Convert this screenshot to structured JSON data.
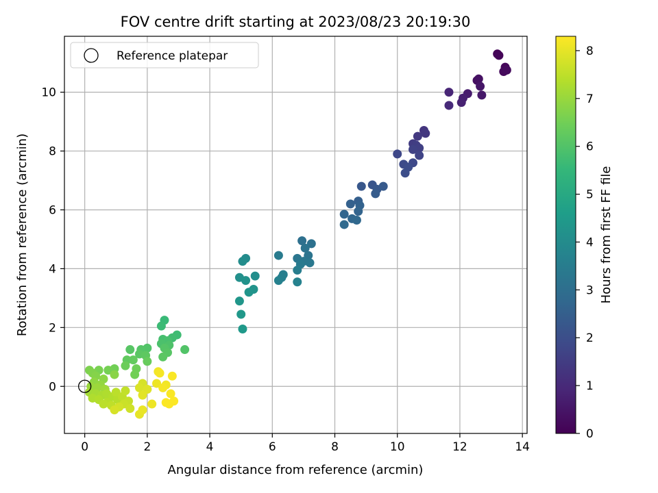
{
  "chart_data": {
    "type": "scatter",
    "title": "FOV centre drift starting at 2023/08/23 20:19:30",
    "xlabel": "Angular distance from reference (arcmin)",
    "ylabel": "Rotation from reference (arcmin)",
    "xlim": [
      -0.65,
      14.15
    ],
    "ylim": [
      -1.6,
      11.9
    ],
    "x_ticks": [
      0,
      2,
      4,
      6,
      8,
      10,
      12,
      14
    ],
    "y_ticks": [
      0,
      2,
      4,
      6,
      8,
      10
    ],
    "grid": true,
    "legend": {
      "placement": "top-left",
      "entries": [
        "Reference platepar"
      ]
    },
    "reference_point": {
      "x": 0,
      "y": 0
    },
    "colorbar": {
      "label": "Hours from first FF file",
      "range": [
        0,
        8.3
      ],
      "ticks": [
        0,
        1,
        2,
        3,
        4,
        5,
        6,
        7,
        8
      ],
      "colormap": "viridis",
      "colors": [
        "#440154",
        "#482777",
        "#3e4989",
        "#31688e",
        "#26828e",
        "#1f9e89",
        "#35b779",
        "#6ece58",
        "#b5de2b",
        "#fde725"
      ]
    },
    "points": [
      {
        "x": 13.2,
        "y": 11.3,
        "h": 0.05
      },
      {
        "x": 13.25,
        "y": 11.25,
        "h": 0.1
      },
      {
        "x": 13.45,
        "y": 10.85,
        "h": 0.15
      },
      {
        "x": 13.4,
        "y": 10.7,
        "h": 0.2
      },
      {
        "x": 13.5,
        "y": 10.75,
        "h": 0.25
      },
      {
        "x": 12.55,
        "y": 10.4,
        "h": 0.35
      },
      {
        "x": 12.6,
        "y": 10.45,
        "h": 0.4
      },
      {
        "x": 12.65,
        "y": 10.2,
        "h": 0.5
      },
      {
        "x": 12.7,
        "y": 9.9,
        "h": 0.55
      },
      {
        "x": 12.25,
        "y": 9.95,
        "h": 0.65
      },
      {
        "x": 12.1,
        "y": 9.8,
        "h": 0.75
      },
      {
        "x": 12.05,
        "y": 9.65,
        "h": 0.8
      },
      {
        "x": 11.65,
        "y": 10.0,
        "h": 0.9
      },
      {
        "x": 11.65,
        "y": 9.55,
        "h": 1.0
      },
      {
        "x": 10.85,
        "y": 8.7,
        "h": 1.3
      },
      {
        "x": 10.9,
        "y": 8.6,
        "h": 1.35
      },
      {
        "x": 10.65,
        "y": 8.5,
        "h": 1.4
      },
      {
        "x": 10.5,
        "y": 8.25,
        "h": 1.5
      },
      {
        "x": 10.6,
        "y": 8.2,
        "h": 1.55
      },
      {
        "x": 10.7,
        "y": 8.1,
        "h": 1.6
      },
      {
        "x": 10.5,
        "y": 8.05,
        "h": 1.65
      },
      {
        "x": 10.7,
        "y": 7.85,
        "h": 1.7
      },
      {
        "x": 10.0,
        "y": 7.9,
        "h": 1.8
      },
      {
        "x": 10.5,
        "y": 7.6,
        "h": 1.85
      },
      {
        "x": 10.2,
        "y": 7.55,
        "h": 1.9
      },
      {
        "x": 10.35,
        "y": 7.45,
        "h": 1.95
      },
      {
        "x": 10.25,
        "y": 7.25,
        "h": 2.0
      },
      {
        "x": 9.2,
        "y": 6.85,
        "h": 2.2
      },
      {
        "x": 8.85,
        "y": 6.8,
        "h": 2.25
      },
      {
        "x": 9.35,
        "y": 6.7,
        "h": 2.3
      },
      {
        "x": 9.55,
        "y": 6.8,
        "h": 2.35
      },
      {
        "x": 9.3,
        "y": 6.55,
        "h": 2.4
      },
      {
        "x": 8.75,
        "y": 6.3,
        "h": 2.5
      },
      {
        "x": 8.5,
        "y": 6.2,
        "h": 2.55
      },
      {
        "x": 8.8,
        "y": 6.15,
        "h": 2.6
      },
      {
        "x": 8.75,
        "y": 5.95,
        "h": 2.65
      },
      {
        "x": 8.3,
        "y": 5.85,
        "h": 2.7
      },
      {
        "x": 8.55,
        "y": 5.7,
        "h": 2.75
      },
      {
        "x": 8.7,
        "y": 5.65,
        "h": 2.8
      },
      {
        "x": 8.3,
        "y": 5.5,
        "h": 2.85
      },
      {
        "x": 6.95,
        "y": 4.95,
        "h": 3.05
      },
      {
        "x": 7.25,
        "y": 4.85,
        "h": 3.1
      },
      {
        "x": 7.05,
        "y": 4.7,
        "h": 3.15
      },
      {
        "x": 7.15,
        "y": 4.45,
        "h": 3.2
      },
      {
        "x": 6.8,
        "y": 4.35,
        "h": 3.25
      },
      {
        "x": 7.0,
        "y": 4.25,
        "h": 3.3
      },
      {
        "x": 7.2,
        "y": 4.2,
        "h": 3.35
      },
      {
        "x": 6.9,
        "y": 4.15,
        "h": 3.4
      },
      {
        "x": 6.2,
        "y": 4.45,
        "h": 3.45
      },
      {
        "x": 6.8,
        "y": 3.95,
        "h": 3.5
      },
      {
        "x": 6.35,
        "y": 3.8,
        "h": 3.55
      },
      {
        "x": 6.3,
        "y": 3.7,
        "h": 3.6
      },
      {
        "x": 6.2,
        "y": 3.6,
        "h": 3.65
      },
      {
        "x": 6.8,
        "y": 3.55,
        "h": 3.7
      },
      {
        "x": 5.15,
        "y": 4.35,
        "h": 4.0
      },
      {
        "x": 5.05,
        "y": 4.25,
        "h": 4.05
      },
      {
        "x": 5.45,
        "y": 3.75,
        "h": 4.1
      },
      {
        "x": 4.95,
        "y": 3.7,
        "h": 4.15
      },
      {
        "x": 5.15,
        "y": 3.6,
        "h": 4.2
      },
      {
        "x": 5.4,
        "y": 3.3,
        "h": 4.25
      },
      {
        "x": 5.25,
        "y": 3.2,
        "h": 4.3
      },
      {
        "x": 4.95,
        "y": 2.9,
        "h": 4.35
      },
      {
        "x": 5.0,
        "y": 2.45,
        "h": 4.4
      },
      {
        "x": 5.05,
        "y": 1.95,
        "h": 4.45
      },
      {
        "x": 2.55,
        "y": 2.25,
        "h": 5.6
      },
      {
        "x": 2.45,
        "y": 2.05,
        "h": 5.65
      },
      {
        "x": 2.95,
        "y": 1.75,
        "h": 5.7
      },
      {
        "x": 2.8,
        "y": 1.65,
        "h": 5.75
      },
      {
        "x": 2.5,
        "y": 1.6,
        "h": 5.8
      },
      {
        "x": 2.65,
        "y": 1.55,
        "h": 5.85
      },
      {
        "x": 2.45,
        "y": 1.45,
        "h": 5.9
      },
      {
        "x": 2.7,
        "y": 1.4,
        "h": 5.95
      },
      {
        "x": 3.2,
        "y": 1.25,
        "h": 6.0
      },
      {
        "x": 2.55,
        "y": 1.3,
        "h": 6.05
      },
      {
        "x": 2.65,
        "y": 1.15,
        "h": 6.1
      },
      {
        "x": 2.5,
        "y": 1.0,
        "h": 6.15
      },
      {
        "x": 2.0,
        "y": 1.3,
        "h": 6.0
      },
      {
        "x": 1.8,
        "y": 1.25,
        "h": 6.05
      },
      {
        "x": 1.45,
        "y": 1.25,
        "h": 6.1
      },
      {
        "x": 1.75,
        "y": 1.1,
        "h": 6.15
      },
      {
        "x": 1.95,
        "y": 1.05,
        "h": 6.2
      },
      {
        "x": 1.35,
        "y": 0.9,
        "h": 6.25
      },
      {
        "x": 1.55,
        "y": 0.9,
        "h": 6.3
      },
      {
        "x": 2.0,
        "y": 0.85,
        "h": 6.35
      },
      {
        "x": 1.3,
        "y": 0.7,
        "h": 6.4
      },
      {
        "x": 1.65,
        "y": 0.6,
        "h": 6.45
      },
      {
        "x": 1.6,
        "y": 0.4,
        "h": 6.5
      },
      {
        "x": 0.95,
        "y": 0.6,
        "h": 6.5
      },
      {
        "x": 0.75,
        "y": 0.55,
        "h": 6.55
      },
      {
        "x": 0.45,
        "y": 0.55,
        "h": 6.6
      },
      {
        "x": 0.15,
        "y": 0.55,
        "h": 6.65
      },
      {
        "x": 0.25,
        "y": 0.45,
        "h": 6.7
      },
      {
        "x": 0.35,
        "y": 0.35,
        "h": 6.75
      },
      {
        "x": 0.95,
        "y": 0.4,
        "h": 6.8
      },
      {
        "x": 0.6,
        "y": 0.25,
        "h": 6.85
      },
      {
        "x": 0.3,
        "y": 0.15,
        "h": 6.9
      },
      {
        "x": 0.5,
        "y": 0.05,
        "h": 6.95
      },
      {
        "x": 0.2,
        "y": 0.0,
        "h": 7.0
      },
      {
        "x": 0.4,
        "y": -0.05,
        "h": 7.05
      },
      {
        "x": 0.65,
        "y": -0.1,
        "h": 7.1
      },
      {
        "x": 0.15,
        "y": -0.2,
        "h": 7.15
      },
      {
        "x": 0.35,
        "y": -0.25,
        "h": 7.2
      },
      {
        "x": 0.55,
        "y": -0.3,
        "h": 7.25
      },
      {
        "x": 0.25,
        "y": -0.4,
        "h": 7.3
      },
      {
        "x": 0.45,
        "y": -0.45,
        "h": 7.35
      },
      {
        "x": 0.75,
        "y": -0.5,
        "h": 7.4
      },
      {
        "x": 0.6,
        "y": -0.6,
        "h": 7.45
      },
      {
        "x": 0.85,
        "y": -0.65,
        "h": 7.5
      },
      {
        "x": 0.7,
        "y": -0.25,
        "h": 7.3
      },
      {
        "x": 0.9,
        "y": -0.35,
        "h": 7.35
      },
      {
        "x": 1.05,
        "y": -0.45,
        "h": 7.4
      },
      {
        "x": 1.0,
        "y": -0.2,
        "h": 7.45
      },
      {
        "x": 1.2,
        "y": -0.35,
        "h": 7.5
      },
      {
        "x": 1.3,
        "y": -0.15,
        "h": 7.55
      },
      {
        "x": 1.4,
        "y": -0.5,
        "h": 7.6
      },
      {
        "x": 1.25,
        "y": -0.6,
        "h": 7.65
      },
      {
        "x": 1.45,
        "y": -0.75,
        "h": 7.7
      },
      {
        "x": 1.1,
        "y": -0.7,
        "h": 7.75
      },
      {
        "x": 0.95,
        "y": -0.8,
        "h": 7.8
      },
      {
        "x": 1.85,
        "y": 0.1,
        "h": 7.8
      },
      {
        "x": 1.75,
        "y": -0.05,
        "h": 7.85
      },
      {
        "x": 2.0,
        "y": -0.1,
        "h": 7.9
      },
      {
        "x": 1.85,
        "y": -0.3,
        "h": 7.95
      },
      {
        "x": 1.75,
        "y": -0.95,
        "h": 8.0
      },
      {
        "x": 1.85,
        "y": -0.8,
        "h": 8.05
      },
      {
        "x": 2.15,
        "y": -0.6,
        "h": 8.1
      },
      {
        "x": 2.35,
        "y": 0.5,
        "h": 8.15
      },
      {
        "x": 2.4,
        "y": 0.45,
        "h": 8.2
      },
      {
        "x": 2.8,
        "y": 0.35,
        "h": 8.25
      },
      {
        "x": 2.3,
        "y": 0.1,
        "h": 8.1
      },
      {
        "x": 2.6,
        "y": 0.05,
        "h": 8.15
      },
      {
        "x": 2.5,
        "y": -0.05,
        "h": 8.2
      },
      {
        "x": 2.75,
        "y": -0.25,
        "h": 8.25
      },
      {
        "x": 2.6,
        "y": -0.55,
        "h": 8.28
      },
      {
        "x": 2.7,
        "y": -0.6,
        "h": 8.28
      },
      {
        "x": 2.85,
        "y": -0.5,
        "h": 8.28
      }
    ]
  }
}
